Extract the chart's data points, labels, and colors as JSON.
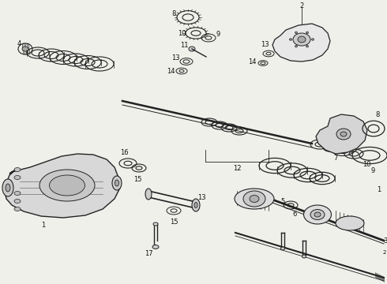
{
  "background": "#f0f0eb",
  "line_color": "#222222",
  "text_color": "#111111",
  "figsize": [
    4.9,
    3.6
  ],
  "dpi": 100
}
